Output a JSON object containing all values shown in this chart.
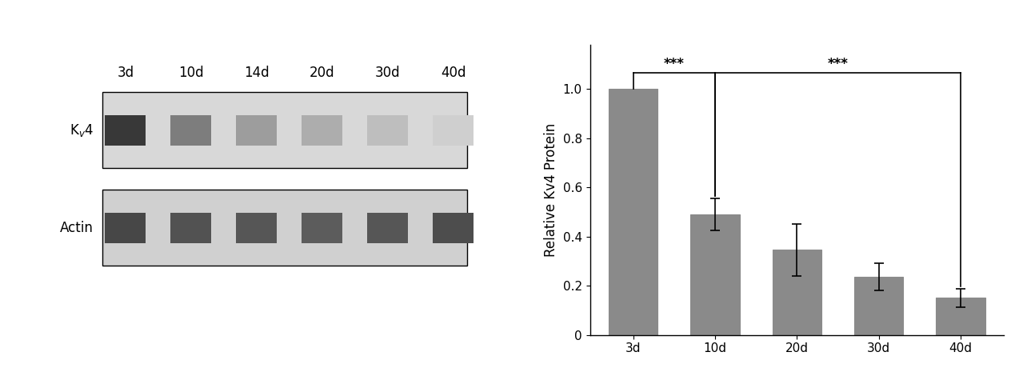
{
  "categories": [
    "3d",
    "10d",
    "20d",
    "30d",
    "40d"
  ],
  "values": [
    1.0,
    0.49,
    0.345,
    0.235,
    0.15
  ],
  "errors": [
    0.0,
    0.065,
    0.105,
    0.055,
    0.038
  ],
  "bar_color": "#8a8a8a",
  "bar_edge_color": "#8a8a8a",
  "ylabel": "Relative Kv4 Protein",
  "ylim": [
    0,
    1.18
  ],
  "yticks": [
    0,
    0.2,
    0.4,
    0.6,
    0.8,
    1.0
  ],
  "background_color": "#ffffff",
  "bar_width": 0.6,
  "western_labels_row1": [
    "3d",
    "10d",
    "14d",
    "20d",
    "30d",
    "40d"
  ],
  "kv4_intensities": [
    0.92,
    0.6,
    0.45,
    0.38,
    0.3,
    0.22
  ],
  "act_intensities": [
    0.85,
    0.8,
    0.78,
    0.75,
    0.78,
    0.82
  ],
  "font_size": 12,
  "tick_font_size": 11
}
